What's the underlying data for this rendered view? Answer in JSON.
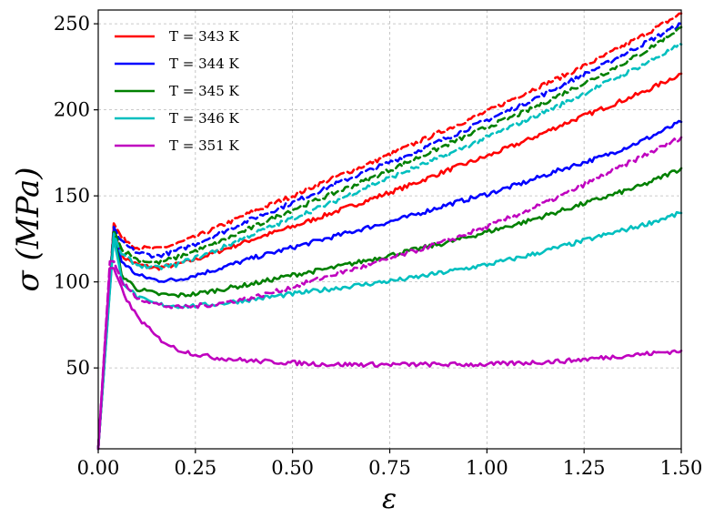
{
  "chart_data": {
    "type": "line",
    "xlabel": "ε",
    "ylabel": "σ (MPa)",
    "xlim": [
      0,
      1.5
    ],
    "ylim": [
      3,
      258
    ],
    "xticks": [
      0.0,
      0.25,
      0.5,
      0.75,
      1.0,
      1.25,
      1.5
    ],
    "xtick_labels": [
      "0.00",
      "0.25",
      "0.50",
      "0.75",
      "1.00",
      "1.25",
      "1.50"
    ],
    "yticks": [
      50,
      100,
      150,
      200,
      250
    ],
    "ytick_labels": [
      "50",
      "100",
      "150",
      "200",
      "250"
    ],
    "grid": true,
    "legend_position": "top-left",
    "legend": [
      {
        "label": "T = 343 K",
        "color": "#ff0000"
      },
      {
        "label": "T = 344 K",
        "color": "#0000ff"
      },
      {
        "label": "T = 345 K",
        "color": "#008000"
      },
      {
        "label": "T = 346 K",
        "color": "#00bfbf"
      },
      {
        "label": "T = 351 K",
        "color": "#bf00bf"
      }
    ],
    "series": [
      {
        "color": "#ff0000",
        "style": "solid",
        "x": [
          0.0,
          0.04,
          0.06,
          0.1,
          0.15,
          0.2,
          0.25,
          0.3,
          0.4,
          0.5,
          0.6,
          0.7,
          0.8,
          0.9,
          1.0,
          1.1,
          1.2,
          1.3,
          1.4,
          1.5
        ],
        "y": [
          3,
          132,
          115,
          110,
          108,
          110,
          113,
          117,
          125,
          132,
          140,
          148,
          156,
          165,
          173,
          182,
          192,
          201,
          210,
          221
        ]
      },
      {
        "color": "#ff0000",
        "style": "dashed",
        "x": [
          0.0,
          0.04,
          0.06,
          0.1,
          0.15,
          0.2,
          0.25,
          0.3,
          0.4,
          0.5,
          0.6,
          0.7,
          0.8,
          0.9,
          1.0,
          1.1,
          1.2,
          1.3,
          1.4,
          1.5
        ],
        "y": [
          3,
          134,
          126,
          120,
          119,
          122,
          126,
          131,
          141,
          150,
          160,
          169,
          179,
          189,
          199,
          210,
          220,
          231,
          243,
          256
        ]
      },
      {
        "color": "#0000ff",
        "style": "solid",
        "x": [
          0.0,
          0.04,
          0.06,
          0.1,
          0.15,
          0.2,
          0.25,
          0.3,
          0.4,
          0.5,
          0.6,
          0.7,
          0.8,
          0.9,
          1.0,
          1.1,
          1.2,
          1.3,
          1.4,
          1.5
        ],
        "y": [
          3,
          130,
          112,
          104,
          101,
          101,
          104,
          107,
          114,
          120,
          126,
          132,
          138,
          145,
          151,
          158,
          166,
          173,
          182,
          193
        ]
      },
      {
        "color": "#0000ff",
        "style": "dashed",
        "x": [
          0.0,
          0.04,
          0.06,
          0.1,
          0.15,
          0.2,
          0.25,
          0.3,
          0.4,
          0.5,
          0.6,
          0.7,
          0.8,
          0.9,
          1.0,
          1.1,
          1.2,
          1.3,
          1.4,
          1.5
        ],
        "y": [
          3,
          132,
          123,
          117,
          115,
          118,
          122,
          127,
          137,
          146,
          156,
          165,
          174,
          184,
          194,
          204,
          215,
          226,
          238,
          250
        ]
      },
      {
        "color": "#008000",
        "style": "solid",
        "x": [
          0.0,
          0.04,
          0.06,
          0.1,
          0.15,
          0.2,
          0.25,
          0.3,
          0.4,
          0.5,
          0.6,
          0.7,
          0.8,
          0.9,
          1.0,
          1.1,
          1.2,
          1.3,
          1.4,
          1.5
        ],
        "y": [
          3,
          128,
          104,
          96,
          93,
          92,
          93,
          95,
          99,
          104,
          108,
          113,
          118,
          123,
          129,
          135,
          142,
          149,
          156,
          166
        ]
      },
      {
        "color": "#008000",
        "style": "dashed",
        "x": [
          0.0,
          0.04,
          0.06,
          0.1,
          0.15,
          0.2,
          0.25,
          0.3,
          0.4,
          0.5,
          0.6,
          0.7,
          0.8,
          0.9,
          1.0,
          1.1,
          1.2,
          1.3,
          1.4,
          1.5
        ],
        "y": [
          3,
          130,
          119,
          113,
          111,
          114,
          118,
          122,
          132,
          142,
          151,
          160,
          170,
          180,
          190,
          199,
          210,
          221,
          233,
          248
        ]
      },
      {
        "color": "#00bfbf",
        "style": "solid",
        "x": [
          0.0,
          0.04,
          0.06,
          0.1,
          0.15,
          0.2,
          0.25,
          0.3,
          0.4,
          0.5,
          0.6,
          0.7,
          0.8,
          0.9,
          1.0,
          1.1,
          1.2,
          1.3,
          1.4,
          1.5
        ],
        "y": [
          3,
          126,
          101,
          91,
          87,
          86,
          86,
          87,
          90,
          93,
          96,
          99,
          102,
          106,
          110,
          115,
          121,
          127,
          133,
          140
        ]
      },
      {
        "color": "#00bfbf",
        "style": "dashed",
        "x": [
          0.0,
          0.04,
          0.06,
          0.1,
          0.15,
          0.2,
          0.25,
          0.3,
          0.4,
          0.5,
          0.6,
          0.7,
          0.8,
          0.9,
          1.0,
          1.1,
          1.2,
          1.3,
          1.4,
          1.5
        ],
        "y": [
          3,
          128,
          116,
          110,
          108,
          110,
          114,
          118,
          128,
          137,
          146,
          156,
          165,
          174,
          184,
          194,
          204,
          215,
          226,
          238
        ]
      },
      {
        "color": "#bf00bf",
        "style": "solid",
        "x": [
          0.0,
          0.03,
          0.04,
          0.06,
          0.08,
          0.1,
          0.15,
          0.2,
          0.25,
          0.3,
          0.4,
          0.5,
          0.6,
          0.7,
          0.8,
          0.9,
          1.0,
          1.1,
          1.2,
          1.3,
          1.4,
          1.5
        ],
        "y": [
          3,
          108,
          108,
          96,
          87,
          80,
          68,
          61,
          58,
          56,
          54,
          53,
          52,
          52,
          52,
          52,
          52,
          53,
          54,
          56,
          58,
          60
        ]
      },
      {
        "color": "#bf00bf",
        "style": "dashed",
        "x": [
          0.0,
          0.03,
          0.04,
          0.06,
          0.1,
          0.15,
          0.2,
          0.25,
          0.3,
          0.4,
          0.5,
          0.6,
          0.7,
          0.8,
          0.9,
          1.0,
          1.1,
          1.2,
          1.3,
          1.4,
          1.5
        ],
        "y": [
          3,
          112,
          112,
          100,
          91,
          87,
          85,
          86,
          87,
          91,
          97,
          104,
          110,
          117,
          124,
          132,
          141,
          151,
          162,
          173,
          184
        ]
      }
    ]
  }
}
